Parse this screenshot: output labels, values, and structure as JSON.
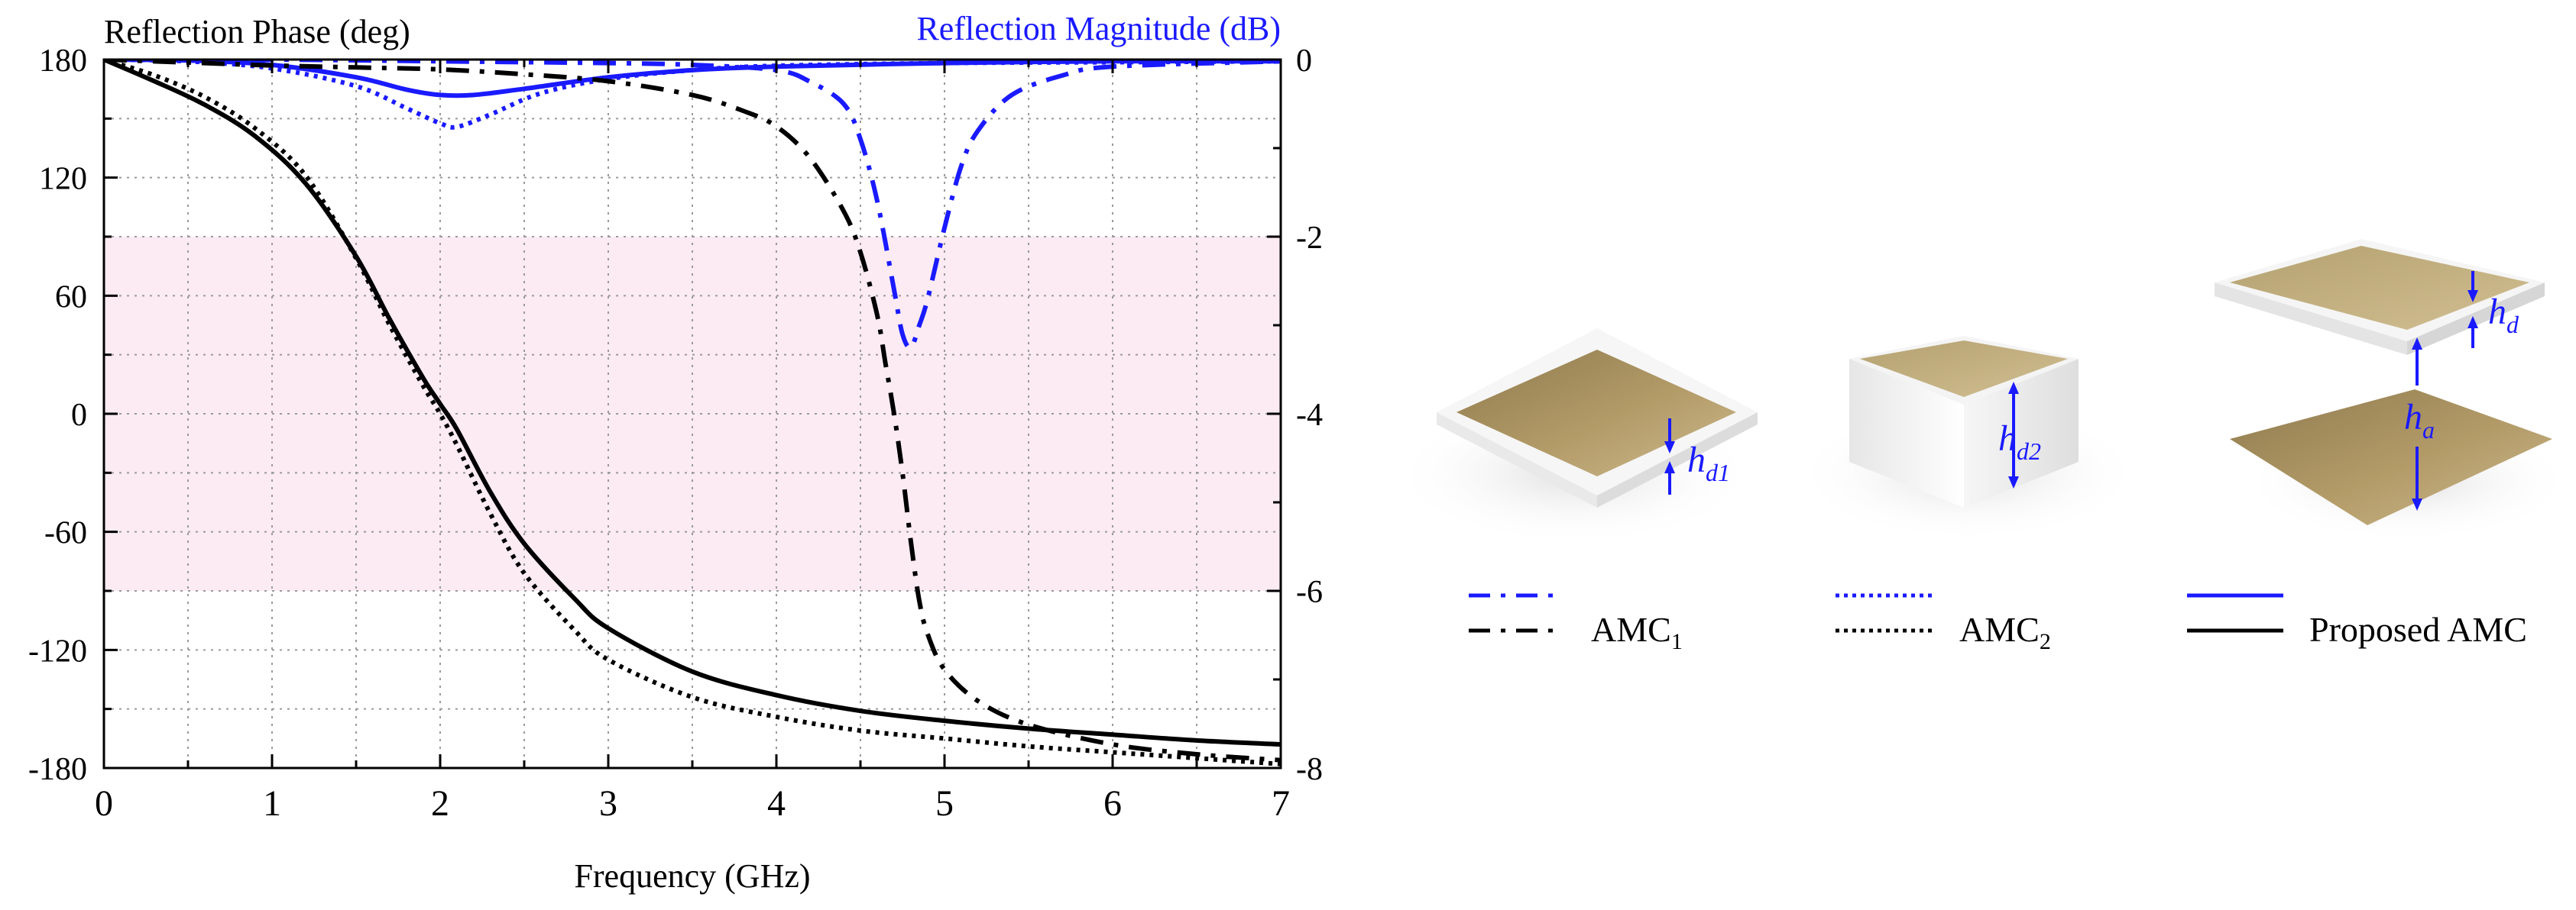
{
  "chart_data": {
    "type": "line",
    "xlabel": "Frequency (GHz)",
    "ylabel_left": "Reflection Phase (deg)",
    "ylabel_right": "Reflection Magnitude (dB)",
    "xlim": [
      0,
      7
    ],
    "ylim_left": [
      -180,
      180
    ],
    "ylim_right": [
      -8,
      0
    ],
    "x_ticks": [
      "0",
      "1",
      "2",
      "3",
      "4",
      "5",
      "6",
      "7"
    ],
    "y_ticks_left": [
      "180",
      "120",
      "60",
      "0",
      "-60",
      "-120",
      "-180"
    ],
    "y_ticks_right": [
      "0",
      "-2",
      "-4",
      "-6",
      "-8"
    ],
    "grid": true,
    "shaded_band_phase": [
      -90,
      90
    ],
    "shade_color": "#fcebf3",
    "series": [
      {
        "name": "AMC1",
        "quantity": "phase",
        "axis": "left",
        "color": "#000000",
        "style": "dashdot",
        "x": [
          0,
          0.5,
          1,
          1.5,
          2,
          2.5,
          3,
          3.5,
          3.8,
          4.0,
          4.2,
          4.4,
          4.5,
          4.6,
          4.65,
          4.7,
          4.75,
          4.8,
          4.85,
          4.9,
          5.0,
          5.2,
          5.5,
          6.0,
          6.5,
          7.0
        ],
        "y": [
          180,
          178.5,
          177,
          176,
          175,
          172.5,
          169,
          162,
          154,
          146,
          130,
          103,
          82,
          50,
          25,
          0,
          -30,
          -65,
          -95,
          -112,
          -130,
          -146,
          -158,
          -168,
          -173,
          -176
        ]
      },
      {
        "name": "AMC1",
        "quantity": "magnitude",
        "axis": "right",
        "color": "#1a1aff",
        "style": "dashdot",
        "x": [
          0,
          1,
          2,
          3,
          3.5,
          4.0,
          4.2,
          4.4,
          4.5,
          4.6,
          4.7,
          4.75,
          4.8,
          4.85,
          4.9,
          5.0,
          5.1,
          5.2,
          5.4,
          5.7,
          6.0,
          7.0
        ],
        "y": [
          0,
          0,
          -0.02,
          -0.04,
          -0.06,
          -0.12,
          -0.25,
          -0.5,
          -0.9,
          -1.6,
          -2.6,
          -3.1,
          -3.25,
          -3.0,
          -2.7,
          -1.9,
          -1.2,
          -0.8,
          -0.4,
          -0.18,
          -0.08,
          -0.02
        ]
      },
      {
        "name": "AMC2",
        "quantity": "phase",
        "axis": "left",
        "color": "#000000",
        "style": "dotted",
        "x": [
          0,
          0.3,
          0.6,
          0.9,
          1.2,
          1.5,
          1.7,
          1.9,
          2.0,
          2.1,
          2.3,
          2.5,
          2.8,
          3.0,
          3.5,
          4.0,
          4.5,
          5.0,
          5.5,
          6.0,
          6.5,
          7.0
        ],
        "y": [
          180,
          172,
          161,
          145,
          121,
          79,
          45,
          14,
          0,
          -16,
          -51,
          -81,
          -110,
          -125,
          -144,
          -154,
          -161,
          -165,
          -169,
          -172,
          -175,
          -178
        ]
      },
      {
        "name": "AMC2",
        "quantity": "magnitude",
        "axis": "right",
        "color": "#1a1aff",
        "style": "dotted",
        "x": [
          0,
          0.5,
          1,
          1.5,
          1.8,
          2.0,
          2.1,
          2.3,
          2.6,
          3.0,
          3.5,
          4.0,
          5.0,
          6.0,
          7.0
        ],
        "y": [
          0,
          -0.02,
          -0.1,
          -0.3,
          -0.55,
          -0.72,
          -0.76,
          -0.62,
          -0.38,
          -0.22,
          -0.12,
          -0.07,
          -0.04,
          -0.03,
          -0.02
        ]
      },
      {
        "name": "Proposed AMC",
        "quantity": "phase",
        "axis": "left",
        "color": "#000000",
        "style": "solid",
        "x": [
          0,
          0.3,
          0.6,
          0.9,
          1.2,
          1.5,
          1.7,
          1.9,
          2.0,
          2.1,
          2.3,
          2.5,
          2.8,
          3.0,
          3.5,
          4.0,
          4.5,
          5.0,
          5.5,
          6.0,
          6.5,
          7.0
        ],
        "y": [
          180,
          169,
          157,
          141,
          117,
          80,
          48,
          18,
          5,
          -8,
          -40,
          -66,
          -94,
          -109,
          -131,
          -143,
          -151,
          -156,
          -160,
          -163,
          -166,
          -168
        ]
      },
      {
        "name": "Proposed AMC",
        "quantity": "magnitude",
        "axis": "right",
        "color": "#1a1aff",
        "style": "solid",
        "x": [
          0,
          0.5,
          1,
          1.5,
          1.8,
          2.0,
          2.2,
          2.5,
          3.0,
          3.5,
          4.0,
          5.0,
          6.0,
          7.0
        ],
        "y": [
          0,
          -0.01,
          -0.06,
          -0.2,
          -0.34,
          -0.4,
          -0.4,
          -0.33,
          -0.2,
          -0.12,
          -0.08,
          -0.04,
          -0.02,
          -0.02
        ]
      }
    ]
  },
  "legend": {
    "items": [
      {
        "label_main": "AMC",
        "label_sub": "1",
        "style": "dashdot"
      },
      {
        "label_main": "AMC",
        "label_sub": "2",
        "style": "dotted"
      },
      {
        "label_main": "Proposed AMC",
        "label_sub": "",
        "style": "solid"
      }
    ]
  },
  "illustrations": {
    "amc1": {
      "label_main": "h",
      "label_sub": "d1"
    },
    "amc2": {
      "label_main": "h",
      "label_sub": "d2"
    },
    "proposed": {
      "label_d_main": "h",
      "label_d_sub": "d",
      "label_a_main": "h",
      "label_a_sub": "a"
    }
  },
  "colors": {
    "magnitude_series": "#1a1aff",
    "phase_series": "#000000",
    "gold": "#a8915e",
    "substrate": "#f2f2f2"
  }
}
